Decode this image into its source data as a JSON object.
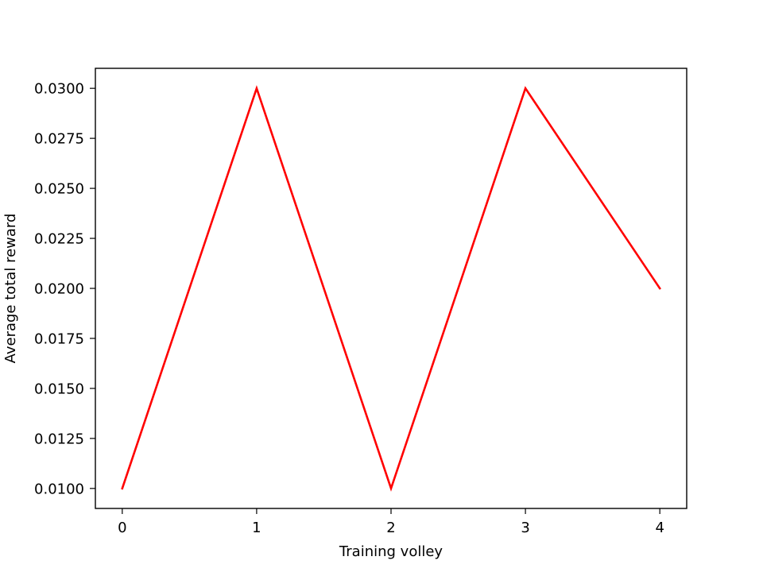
{
  "chart_data": {
    "type": "line",
    "title": "",
    "xlabel": "Training volley",
    "ylabel": "Average total reward",
    "x": [
      0,
      1,
      2,
      3,
      4
    ],
    "series": [
      {
        "values": [
          0.01,
          0.03,
          0.01,
          0.03,
          0.02
        ],
        "color": "#ff0000"
      }
    ],
    "xticks": [
      0,
      1,
      2,
      3,
      4
    ],
    "xtick_labels": [
      "0",
      "1",
      "2",
      "3",
      "4"
    ],
    "yticks": [
      0.01,
      0.0125,
      0.015,
      0.0175,
      0.02,
      0.0225,
      0.025,
      0.0275,
      0.03
    ],
    "ytick_labels": [
      "0.0100",
      "0.0125",
      "0.0150",
      "0.0175",
      "0.0200",
      "0.0225",
      "0.0250",
      "0.0275",
      "0.0300"
    ],
    "xlim": [
      -0.2,
      4.2
    ],
    "ylim": [
      0.009,
      0.031
    ],
    "grid": false,
    "legend": "none"
  }
}
